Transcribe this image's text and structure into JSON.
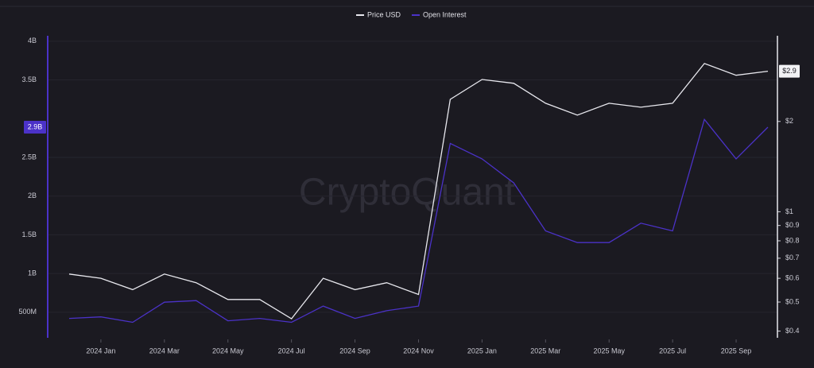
{
  "chart_data": {
    "type": "line",
    "watermark": "CryptoQuant",
    "x": [
      "2023-12",
      "2024-01",
      "2024-02",
      "2024-03",
      "2024-04",
      "2024-05",
      "2024-06",
      "2024-07",
      "2024-08",
      "2024-09",
      "2024-10",
      "2024-11",
      "2024-12",
      "2025-01",
      "2025-02",
      "2025-03",
      "2025-04",
      "2025-05",
      "2025-06",
      "2025-07",
      "2025-08",
      "2025-09",
      "2025-10"
    ],
    "xlim": [
      "2023-11",
      "2025-10"
    ],
    "xticks": [
      {
        "value": "2024-01",
        "label": "2024 Jan"
      },
      {
        "value": "2024-03",
        "label": "2024 Mar"
      },
      {
        "value": "2024-05",
        "label": "2024 May"
      },
      {
        "value": "2024-07",
        "label": "2024 Jul"
      },
      {
        "value": "2024-09",
        "label": "2024 Sep"
      },
      {
        "value": "2024-11",
        "label": "2024 Nov"
      },
      {
        "value": "2025-01",
        "label": "2025 Jan"
      },
      {
        "value": "2025-03",
        "label": "2025 Mar"
      },
      {
        "value": "2025-05",
        "label": "2025 May"
      },
      {
        "value": "2025-07",
        "label": "2025 Jul"
      },
      {
        "value": "2025-09",
        "label": "2025 Sep"
      }
    ],
    "ylim": [
      170000000,
      4070000000
    ],
    "yticks": [
      {
        "value": 500000000,
        "label": "500M"
      },
      {
        "value": 1000000000,
        "label": "1B"
      },
      {
        "value": 1500000000,
        "label": "1.5B"
      },
      {
        "value": 2000000000,
        "label": "2B"
      },
      {
        "value": 2500000000,
        "label": "2.5B"
      },
      {
        "value": 3500000000,
        "label": "3.5B"
      },
      {
        "value": 4000000000,
        "label": "4B"
      }
    ],
    "y2lim": [
      0.38,
      3.86
    ],
    "y2log": true,
    "y2ticks": [
      {
        "value": 0.4,
        "label": "$0.4"
      },
      {
        "value": 0.5,
        "label": "$0.5"
      },
      {
        "value": 0.6,
        "label": "$0.6"
      },
      {
        "value": 0.7,
        "label": "$0.7"
      },
      {
        "value": 0.8,
        "label": "$0.8"
      },
      {
        "value": 0.9,
        "label": "$0.9"
      },
      {
        "value": 1,
        "label": "$1"
      },
      {
        "value": 2,
        "label": "$2"
      }
    ],
    "grid": true,
    "legend": "top",
    "series": [
      {
        "name": "Price USD",
        "color": "#e8e8ee",
        "axis": "y2",
        "values": [
          0.62,
          0.6,
          0.55,
          0.62,
          0.58,
          0.51,
          0.51,
          0.44,
          0.6,
          0.55,
          0.58,
          0.53,
          2.37,
          2.76,
          2.68,
          2.3,
          2.1,
          2.3,
          2.23,
          2.3,
          3.12,
          2.85,
          2.94
        ],
        "value_labels": [
          null,
          null,
          null,
          null,
          null,
          null,
          null,
          null,
          null,
          null,
          null,
          null,
          null,
          null,
          null,
          null,
          null,
          null,
          null,
          null,
          null,
          null,
          "$2.9"
        ]
      },
      {
        "name": "Open Interest",
        "color": "#4b32c8",
        "values": [
          420000000,
          440000000,
          370000000,
          630000000,
          650000000,
          390000000,
          420000000,
          370000000,
          580000000,
          420000000,
          520000000,
          580000000,
          2680000000,
          2480000000,
          2170000000,
          1550000000,
          1400000000,
          1400000000,
          1650000000,
          1550000000,
          2990000000,
          2480000000,
          2890000000
        ],
        "value_labels": [
          null,
          null,
          null,
          null,
          null,
          null,
          null,
          null,
          null,
          null,
          null,
          null,
          null,
          null,
          null,
          null,
          null,
          null,
          null,
          null,
          null,
          null,
          "2.9B"
        ]
      }
    ]
  }
}
